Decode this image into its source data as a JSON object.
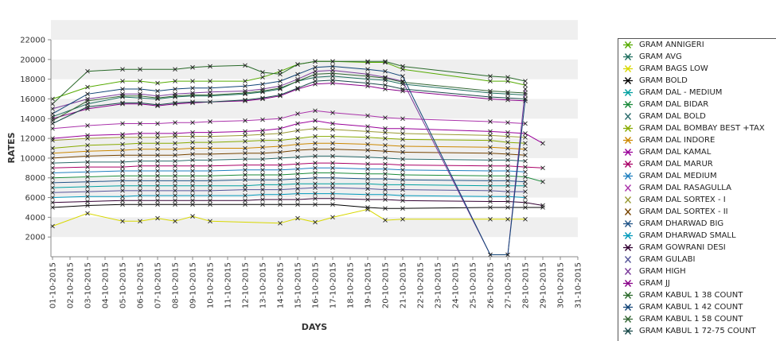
{
  "chart_data": {
    "type": "line",
    "xlabel": "DAYS",
    "ylabel": "RATES",
    "ylim": [
      0,
      22000
    ],
    "yticks": [
      2000,
      4000,
      6000,
      8000,
      10000,
      12000,
      14000,
      16000,
      18000,
      20000,
      22000
    ],
    "grid": "alternating horizontal bands",
    "legend_placement": "right",
    "categories": [
      "01-10-2015",
      "02-10-2015",
      "03-10-2015",
      "04-10-2015",
      "05-10-2015",
      "06-10-2015",
      "07-10-2015",
      "08-10-2015",
      "09-10-2015",
      "10-10-2015",
      "11-10-2015",
      "12-10-2015",
      "13-10-2015",
      "14-10-2015",
      "15-10-2015",
      "16-10-2015",
      "17-10-2015",
      "18-10-2015",
      "19-10-2015",
      "20-10-2015",
      "21-10-2015",
      "22-10-2015",
      "23-10-2015",
      "24-10-2015",
      "25-10-2015",
      "26-10-2015",
      "27-10-2015",
      "28-10-2015",
      "29-10-2015",
      "30-10-2015",
      "31-10-2015"
    ],
    "series": [
      {
        "name": "GRAM ANNIGERI",
        "color": "#55aa00",
        "values": [
          16000,
          null,
          17200,
          null,
          17800,
          17800,
          17600,
          17800,
          17800,
          17800,
          null,
          17800,
          18200,
          18800,
          19500,
          19800,
          19800,
          null,
          19700,
          19700,
          19000,
          null,
          null,
          null,
          null,
          17800,
          17800,
          17400,
          null,
          null,
          null
        ]
      },
      {
        "name": "GRAM AVG",
        "color": "#1f6f5f",
        "values": [
          14200,
          null,
          15500,
          null,
          16200,
          16100,
          16000,
          16200,
          16300,
          16300,
          null,
          16500,
          16700,
          17000,
          17800,
          18200,
          18300,
          null,
          18000,
          17900,
          17500,
          null,
          null,
          null,
          null,
          16600,
          16500,
          16400,
          null,
          null,
          null
        ]
      },
      {
        "name": "GRAM BAGS LOW",
        "color": "#d8d800",
        "values": [
          3100,
          null,
          4400,
          null,
          3600,
          3600,
          3900,
          3600,
          4100,
          3600,
          null,
          null,
          null,
          3400,
          3900,
          3500,
          4000,
          null,
          4800,
          3700,
          3800,
          null,
          null,
          null,
          null,
          3800,
          3800,
          3800,
          null,
          null,
          null
        ]
      },
      {
        "name": "GRAM BOLD",
        "color": "#000000",
        "values": [
          5000,
          null,
          5200,
          null,
          5300,
          5300,
          5300,
          5300,
          5300,
          5300,
          null,
          5300,
          5300,
          5300,
          5300,
          5300,
          5300,
          null,
          5000,
          4900,
          4900,
          null,
          null,
          null,
          null,
          5000,
          5000,
          5000,
          5000,
          null,
          null
        ]
      },
      {
        "name": "GRAM DAL - MEDIUM",
        "color": "#00a0a0",
        "values": [
          7000,
          null,
          7100,
          null,
          7200,
          7200,
          7200,
          7200,
          7200,
          7200,
          null,
          7200,
          7300,
          7300,
          7400,
          7400,
          7400,
          null,
          7400,
          7300,
          7300,
          null,
          null,
          null,
          null,
          7200,
          7200,
          7200,
          null,
          null,
          null
        ]
      },
      {
        "name": "GRAM DAL BIDAR",
        "color": "#1a8a3a",
        "values": [
          8000,
          null,
          8100,
          null,
          8200,
          8200,
          8200,
          8200,
          8200,
          8200,
          null,
          8300,
          8300,
          8300,
          8400,
          8500,
          8500,
          null,
          8400,
          8400,
          8300,
          null,
          null,
          null,
          null,
          8200,
          8200,
          8100,
          7600,
          null,
          null
        ]
      },
      {
        "name": "GRAM DAL BOLD",
        "color": "#2b6b6b",
        "values": [
          9500,
          null,
          9600,
          null,
          9600,
          9700,
          9700,
          9700,
          9800,
          9800,
          null,
          9900,
          9900,
          10000,
          10100,
          10200,
          10200,
          null,
          10100,
          10000,
          9900,
          null,
          null,
          null,
          null,
          9800,
          9800,
          9700,
          null,
          null,
          null
        ]
      },
      {
        "name": "GRAM DAL BOMBAY BEST +TAX",
        "color": "#88aa00",
        "values": [
          11000,
          null,
          11300,
          null,
          11400,
          11500,
          11500,
          11500,
          11600,
          11600,
          null,
          11700,
          11800,
          11800,
          12000,
          12200,
          12200,
          null,
          12100,
          12000,
          11900,
          null,
          null,
          null,
          null,
          11800,
          11600,
          11500,
          null,
          null,
          null
        ]
      },
      {
        "name": "GRAM DAL INDORE",
        "color": "#cc8800",
        "values": [
          10500,
          null,
          10700,
          null,
          10800,
          10900,
          10900,
          10900,
          11000,
          11000,
          null,
          11000,
          11100,
          11200,
          11400,
          11500,
          11500,
          null,
          11400,
          11300,
          11200,
          null,
          null,
          null,
          null,
          11100,
          11000,
          10900,
          null,
          null,
          null
        ]
      },
      {
        "name": "GRAM DAL KAMAL",
        "color": "#990099",
        "values": [
          12000,
          null,
          12300,
          null,
          12400,
          12500,
          12500,
          12500,
          12600,
          12600,
          null,
          12700,
          12800,
          13000,
          13500,
          13800,
          13500,
          null,
          13200,
          13000,
          13000,
          null,
          null,
          null,
          null,
          12700,
          12600,
          12500,
          11500,
          null,
          null
        ]
      },
      {
        "name": "GRAM DAL MARUR",
        "color": "#aa0066",
        "values": [
          9000,
          null,
          9100,
          null,
          9100,
          9200,
          9200,
          9200,
          9200,
          9200,
          null,
          9300,
          9300,
          9300,
          9400,
          9500,
          9500,
          null,
          9400,
          9400,
          9300,
          null,
          null,
          null,
          null,
          9200,
          9200,
          9100,
          9000,
          null,
          null
        ]
      },
      {
        "name": "GRAM DAL MEDIUM",
        "color": "#1e7fbf",
        "values": [
          8500,
          null,
          8600,
          null,
          8700,
          8700,
          8700,
          8700,
          8700,
          8700,
          null,
          8800,
          8800,
          8800,
          8900,
          9000,
          9000,
          null,
          8900,
          8900,
          8800,
          null,
          null,
          null,
          null,
          8700,
          8700,
          8600,
          null,
          null,
          null
        ]
      },
      {
        "name": "GRAM DAL RASAGULLA",
        "color": "#aa33aa",
        "values": [
          13000,
          null,
          13300,
          null,
          13500,
          13500,
          13500,
          13600,
          13600,
          13700,
          null,
          13800,
          13900,
          14000,
          14500,
          14800,
          14600,
          null,
          14300,
          14100,
          14000,
          null,
          null,
          null,
          null,
          13700,
          13600,
          13500,
          null,
          null,
          null
        ]
      },
      {
        "name": "GRAM DAL SORTEX - I",
        "color": "#999933",
        "values": [
          11800,
          null,
          12000,
          null,
          12100,
          12100,
          12100,
          12200,
          12200,
          12200,
          null,
          12300,
          12400,
          12500,
          12800,
          13000,
          12900,
          null,
          12700,
          12600,
          12500,
          null,
          null,
          null,
          null,
          12300,
          12200,
          12100,
          null,
          null,
          null
        ]
      },
      {
        "name": "GRAM DAL SORTEX - II",
        "color": "#774400",
        "values": [
          10000,
          null,
          10200,
          null,
          10300,
          10300,
          10300,
          10300,
          10400,
          10400,
          null,
          10500,
          10500,
          10600,
          10800,
          10900,
          10900,
          null,
          10800,
          10700,
          10600,
          null,
          null,
          null,
          null,
          10500,
          10400,
          10300,
          null,
          null,
          null
        ]
      },
      {
        "name": "GRAM DHARWAD BIG",
        "color": "#225588",
        "values": [
          7500,
          null,
          7600,
          null,
          7700,
          7700,
          7700,
          7700,
          7700,
          7700,
          null,
          7800,
          7800,
          7800,
          7900,
          8000,
          8000,
          null,
          7900,
          7900,
          7800,
          null,
          null,
          null,
          null,
          7700,
          7700,
          7600,
          null,
          null,
          null
        ]
      },
      {
        "name": "GRAM DHARWAD SMALL",
        "color": "#0099bb",
        "values": [
          6000,
          null,
          6100,
          null,
          6100,
          6200,
          6200,
          6200,
          6200,
          6200,
          null,
          6200,
          6300,
          6300,
          6400,
          6400,
          6400,
          null,
          6300,
          6300,
          6200,
          null,
          null,
          null,
          null,
          6100,
          6100,
          6000,
          null,
          null,
          null
        ]
      },
      {
        "name": "GRAM GOWRANI DESI",
        "color": "#330033",
        "values": [
          5500,
          null,
          5600,
          null,
          5700,
          5700,
          5700,
          5700,
          5700,
          5700,
          null,
          5700,
          5800,
          5800,
          5800,
          5900,
          5900,
          null,
          5800,
          5800,
          5700,
          null,
          null,
          null,
          null,
          5600,
          5600,
          5500,
          5200,
          null,
          null
        ]
      },
      {
        "name": "GRAM GULABI",
        "color": "#555599",
        "values": [
          6500,
          null,
          6600,
          null,
          6700,
          6700,
          6700,
          6700,
          6700,
          6700,
          null,
          6800,
          6800,
          6800,
          6900,
          7000,
          7000,
          null,
          6900,
          6800,
          6800,
          null,
          null,
          null,
          null,
          6700,
          6600,
          6600,
          null,
          null,
          null
        ]
      },
      {
        "name": "GRAM HIGH",
        "color": "#7a3a9a",
        "values": [
          15000,
          null,
          16000,
          null,
          16500,
          16500,
          16300,
          16500,
          16600,
          16700,
          null,
          16800,
          17000,
          17300,
          18000,
          18800,
          18900,
          null,
          18500,
          18200,
          17800,
          null,
          null,
          null,
          null,
          200,
          200,
          17000,
          null,
          null,
          null
        ]
      },
      {
        "name": "GRAM JJ",
        "color": "#880088",
        "values": [
          14000,
          null,
          15000,
          null,
          15500,
          15500,
          15300,
          15500,
          15600,
          15700,
          null,
          15800,
          16000,
          16300,
          17000,
          17500,
          17600,
          null,
          17300,
          17000,
          16800,
          null,
          null,
          null,
          null,
          16000,
          15900,
          15800,
          null,
          null,
          null
        ]
      },
      {
        "name": "GRAM KABUL 1 38 COUNT",
        "color": "#2a6a2a",
        "values": [
          15500,
          null,
          18800,
          null,
          19000,
          19000,
          null,
          19000,
          19200,
          19300,
          null,
          19400,
          18700,
          18500,
          19500,
          19800,
          19800,
          null,
          19800,
          19800,
          19300,
          null,
          null,
          null,
          null,
          18300,
          18200,
          17800,
          null,
          null,
          null
        ]
      },
      {
        "name": "GRAM KABUL 1 42 COUNT",
        "color": "#114477",
        "values": [
          14500,
          null,
          16500,
          null,
          17000,
          17000,
          16800,
          17000,
          17100,
          17100,
          null,
          17300,
          17500,
          17800,
          18500,
          19200,
          19300,
          null,
          19000,
          18800,
          18300,
          null,
          null,
          null,
          null,
          200,
          200,
          16000,
          null,
          null,
          null
        ]
      },
      {
        "name": "GRAM KABUL 1 58 COUNT",
        "color": "#336633",
        "values": [
          13800,
          null,
          15800,
          null,
          16300,
          16300,
          16100,
          16300,
          16400,
          16400,
          null,
          16600,
          16800,
          17100,
          17800,
          18500,
          18600,
          null,
          18300,
          18100,
          17700,
          null,
          null,
          null,
          null,
          16800,
          16700,
          16600,
          null,
          null,
          null
        ]
      },
      {
        "name": "GRAM KABUL 1 72-75 COUNT",
        "color": "#1a4a4a",
        "values": [
          13500,
          null,
          15200,
          null,
          15600,
          15600,
          15400,
          15600,
          15700,
          15700,
          null,
          15900,
          16100,
          16400,
          17100,
          17800,
          17900,
          null,
          17600,
          17400,
          17000,
          null,
          null,
          null,
          null,
          16200,
          16100,
          16000,
          null,
          null,
          null
        ]
      }
    ]
  },
  "legend": {
    "items": [
      {
        "label": "GRAM ANNIGERI",
        "color": "#55aa00",
        "marker": "x-line"
      },
      {
        "label": "GRAM AVG",
        "color": "#1f6f5f",
        "marker": "x-line"
      },
      {
        "label": "GRAM BAGS LOW",
        "color": "#d8d800",
        "marker": "x-line"
      },
      {
        "label": "GRAM BOLD",
        "color": "#000000",
        "marker": "x-line"
      },
      {
        "label": "GRAM DAL - MEDIUM",
        "color": "#00a0a0",
        "marker": "x-line"
      },
      {
        "label": "GRAM DAL BIDAR",
        "color": "#1a8a3a",
        "marker": "x-line"
      },
      {
        "label": "GRAM DAL BOLD",
        "color": "#2b6b6b",
        "marker": "x"
      },
      {
        "label": "GRAM DAL BOMBAY BEST +TAX",
        "color": "#88aa00",
        "marker": "x-line"
      },
      {
        "label": "GRAM DAL INDORE",
        "color": "#cc8800",
        "marker": "x-line"
      },
      {
        "label": "GRAM DAL KAMAL",
        "color": "#990099",
        "marker": "x-line"
      },
      {
        "label": "GRAM DAL MARUR",
        "color": "#aa0066",
        "marker": "x-line"
      },
      {
        "label": "GRAM DAL MEDIUM",
        "color": "#1e7fbf",
        "marker": "x-line"
      },
      {
        "label": "GRAM DAL RASAGULLA",
        "color": "#aa33aa",
        "marker": "x"
      },
      {
        "label": "GRAM DAL SORTEX - I",
        "color": "#999933",
        "marker": "x"
      },
      {
        "label": "GRAM DAL SORTEX - II",
        "color": "#774400",
        "marker": "x"
      },
      {
        "label": "GRAM DHARWAD BIG",
        "color": "#225588",
        "marker": "x-line"
      },
      {
        "label": "GRAM DHARWAD SMALL",
        "color": "#0099bb",
        "marker": "x-line"
      },
      {
        "label": "GRAM GOWRANI DESI",
        "color": "#330033",
        "marker": "x-line"
      },
      {
        "label": "GRAM GULABI",
        "color": "#555599",
        "marker": "x"
      },
      {
        "label": "GRAM HIGH",
        "color": "#7a3a9a",
        "marker": "x"
      },
      {
        "label": "GRAM JJ",
        "color": "#880088",
        "marker": "x-line"
      },
      {
        "label": "GRAM KABUL 1 38 COUNT",
        "color": "#2a6a2a",
        "marker": "x-line"
      },
      {
        "label": "GRAM KABUL 1 42 COUNT",
        "color": "#114477",
        "marker": "x-line"
      },
      {
        "label": "GRAM KABUL 1 58 COUNT",
        "color": "#336633",
        "marker": "x-line"
      },
      {
        "label": "GRAM KABUL 1 72-75 COUNT",
        "color": "#1a4a4a",
        "marker": "x-line"
      }
    ]
  }
}
